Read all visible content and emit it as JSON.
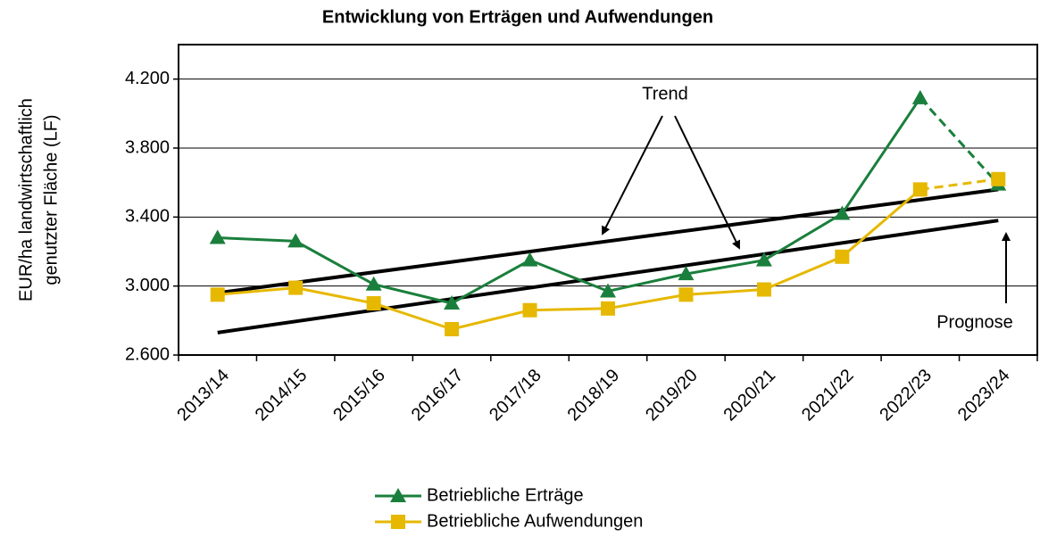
{
  "chart_data": {
    "type": "line",
    "title": "Entwicklung von Erträgen und Aufwendungen",
    "y_label": [
      "EUR/ha landwirtschaftlich",
      "genutzter Fläche (LF)"
    ],
    "categories": [
      "2013/14",
      "2014/15",
      "2015/16",
      "2016/17",
      "2017/18",
      "2018/19",
      "2019/20",
      "2020/21",
      "2021/22",
      "2022/23",
      "2023/24"
    ],
    "series": [
      {
        "name": "Betriebliche Erträge",
        "color": "#1a7f3c",
        "marker": "triangle",
        "values": [
          3280,
          3260,
          3010,
          2900,
          3150,
          2970,
          3070,
          3150,
          3420,
          4090,
          3590
        ]
      },
      {
        "name": "Betriebliche Aufwendungen",
        "color": "#e6b800",
        "marker": "square",
        "values": [
          2950,
          2990,
          2900,
          2750,
          2860,
          2870,
          2950,
          2980,
          3170,
          3560,
          3620
        ]
      }
    ],
    "dashed_last_segment": true,
    "trend_lines": [
      {
        "values": [
          2960,
          3560
        ]
      },
      {
        "values": [
          2730,
          3380
        ]
      }
    ],
    "annotations": [
      "Trend",
      "Prognose"
    ],
    "ylim": [
      2600,
      4400
    ],
    "yticks": [
      {
        "value": 2600,
        "label": "2.600"
      },
      {
        "value": 3000,
        "label": "3.000"
      },
      {
        "value": 3400,
        "label": "3.400"
      },
      {
        "value": 3800,
        "label": "3.800"
      },
      {
        "value": 4200,
        "label": "4.200"
      }
    ],
    "grid": true
  }
}
